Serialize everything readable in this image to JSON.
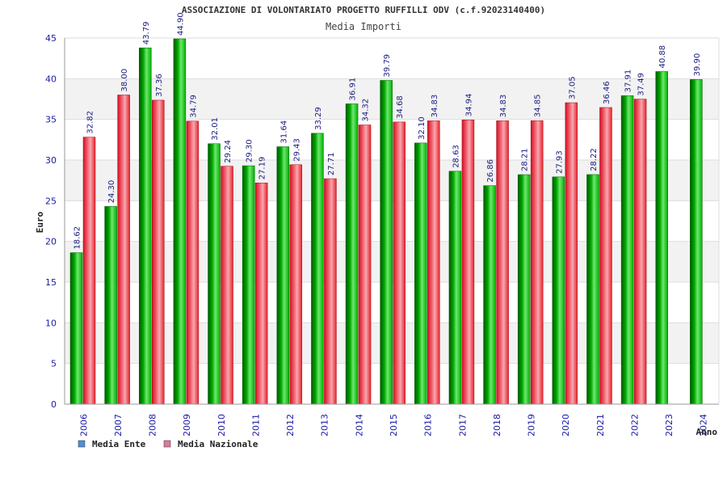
{
  "chart_data": {
    "type": "bar",
    "title": "ASSOCIAZIONE DI VOLONTARIATO PROGETTO RUFFILLI ODV (c.f.92023140400)",
    "subtitle": "Media Importi",
    "xlabel": "Anno",
    "ylabel": "Euro",
    "ylim": [
      0,
      45
    ],
    "yticks": [
      "0",
      "5",
      "10",
      "15",
      "20",
      "25",
      "30",
      "35",
      "40",
      "45"
    ],
    "grid": true,
    "legend_position": "bottom-left",
    "categories": [
      "2006",
      "2007",
      "2008",
      "2009",
      "2010",
      "2011",
      "2012",
      "2013",
      "2014",
      "2015",
      "2016",
      "2017",
      "2018",
      "2019",
      "2020",
      "2021",
      "2022",
      "2023",
      "2024"
    ],
    "series": [
      {
        "name": "Media Ente",
        "color": "#00b000",
        "legend_color": "#4f8fd8",
        "values": [
          18.62,
          24.3,
          43.79,
          44.9,
          32.01,
          29.3,
          31.64,
          33.29,
          36.91,
          39.79,
          32.1,
          28.63,
          26.86,
          28.21,
          27.93,
          28.22,
          37.91,
          40.88,
          39.9
        ],
        "labels": [
          "18.62",
          "24.30",
          "43.79",
          "44.90",
          "32.01",
          "29.30",
          "31.64",
          "33.29",
          "36.91",
          "39.79",
          "32.10",
          "28.63",
          "26.86",
          "28.21",
          "27.93",
          "28.22",
          "37.91",
          "40.88",
          "39.90"
        ]
      },
      {
        "name": "Media Nazionale",
        "color": "#e8202a",
        "legend_color": "#d97aa0",
        "values": [
          32.82,
          38.0,
          37.36,
          34.79,
          29.24,
          27.19,
          29.43,
          27.71,
          34.32,
          34.68,
          34.83,
          34.94,
          34.83,
          34.85,
          37.05,
          36.46,
          37.49,
          null,
          null
        ],
        "labels": [
          "32.82",
          "38.00",
          "37.36",
          "34.79",
          "29.24",
          "27.19",
          "29.43",
          "27.71",
          "34.32",
          "34.68",
          "34.83",
          "34.94",
          "34.83",
          "34.85",
          "37.05",
          "36.46",
          "37.49",
          "",
          ""
        ]
      }
    ]
  }
}
